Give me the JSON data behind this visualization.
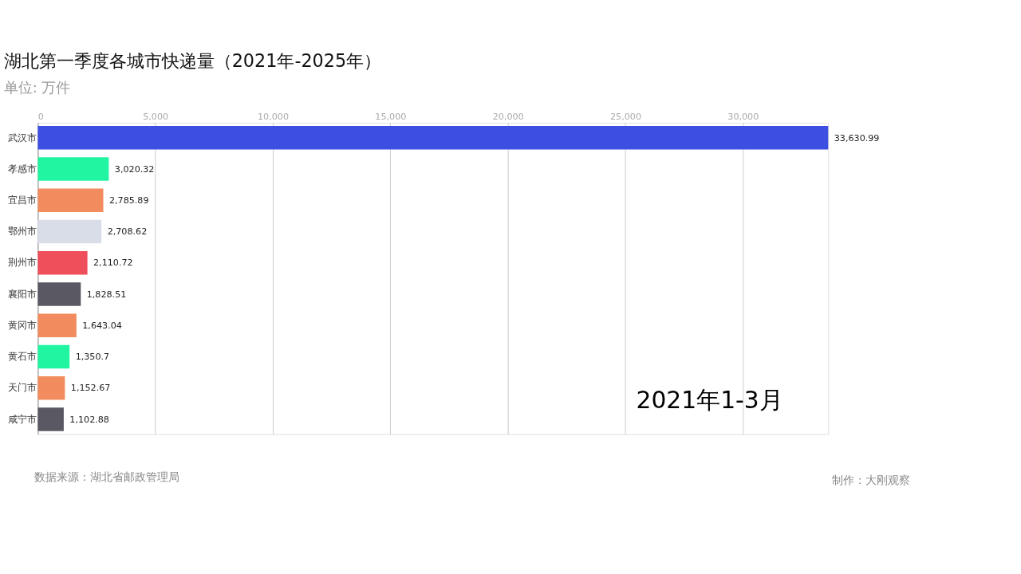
{
  "chart_data": {
    "type": "bar",
    "orientation": "horizontal",
    "title": "湖北第一季度各城市快递量（2021年-2025年）",
    "subtitle": "单位: 万件",
    "categories": [
      "武汉市",
      "孝感市",
      "宜昌市",
      "鄂州市",
      "荆州市",
      "襄阳市",
      "黄冈市",
      "黄石市",
      "天门市",
      "咸宁市"
    ],
    "values": [
      33630.99,
      3020.32,
      2785.89,
      2708.62,
      2110.72,
      1828.51,
      1643.04,
      1350.7,
      1152.67,
      1102.88
    ],
    "value_labels": [
      "33,630.99",
      "3,020.32",
      "2,785.89",
      "2,708.62",
      "2,110.72",
      "1,828.51",
      "1,643.04",
      "1,350.7",
      "1,152.67",
      "1,102.88"
    ],
    "colors": [
      "#3d4fe3",
      "#22f5a2",
      "#f28c5e",
      "#d9dde7",
      "#ee4f5b",
      "#5a5863",
      "#f28c5e",
      "#22f5a2",
      "#f28c5e",
      "#5a5863"
    ],
    "xlim": [
      0,
      33630.99
    ],
    "xticks": [
      0,
      {
        "value": 5000,
        "label": "5,000"
      },
      {
        "value": 10000,
        "label": "10,000"
      },
      {
        "value": 15000,
        "label": "15,000"
      },
      {
        "value": 20000,
        "label": "20,000"
      },
      {
        "value": 25000,
        "label": "25,000"
      },
      {
        "value": 30000,
        "label": "30,000"
      }
    ],
    "grid": "x",
    "legend": false,
    "annotations": [
      "2021年1-3月",
      "数据来源：湖北省邮政管理局",
      "制作：大刚观察"
    ]
  }
}
